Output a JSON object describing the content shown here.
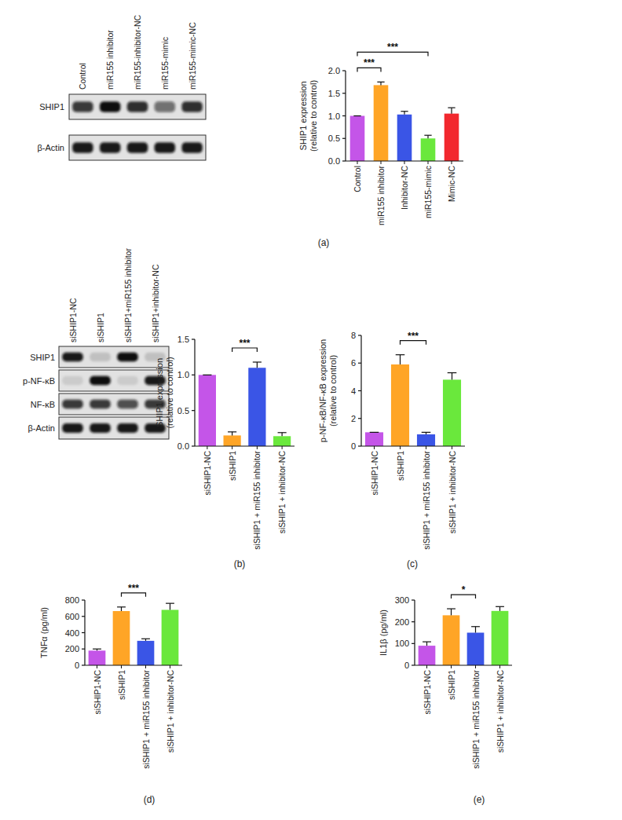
{
  "blots": [
    {
      "lanes": [
        "Control",
        "miR155 inhibitor",
        "miR155-inhibitor-NC",
        "miR155-mimic",
        "miR155-mimic-NC"
      ],
      "rows": [
        {
          "label": "SHIP1",
          "intensity": [
            0.8,
            1.0,
            0.85,
            0.55,
            0.85
          ]
        },
        {
          "label": "β-Actin",
          "intensity": [
            0.95,
            0.95,
            0.95,
            0.95,
            0.95
          ]
        }
      ]
    },
    {
      "lanes": [
        "siSHIP1-NC",
        "siSHIP1",
        "siSHIP1+miR155 inhibitor",
        "siSHIP1+inhibitor-NC"
      ],
      "rows": [
        {
          "label": "SHIP1",
          "intensity": [
            0.95,
            0.15,
            1.0,
            0.15
          ]
        },
        {
          "label": "p-NF-κB",
          "intensity": [
            0.1,
            1.0,
            0.1,
            0.95
          ]
        },
        {
          "label": "NF-κB",
          "intensity": [
            0.8,
            0.8,
            0.7,
            0.8
          ]
        },
        {
          "label": "β-Actin",
          "intensity": [
            0.95,
            0.95,
            0.95,
            0.95
          ]
        }
      ]
    }
  ],
  "chart_data": [
    {
      "type": "bar",
      "caption": "(a)",
      "y_label": [
        "SHIP1 expression",
        "(relative to control)"
      ],
      "categories": [
        "Control",
        "miR155 inhibitor",
        "Inhibitor-NC",
        "miR155-mimic",
        "Mimic-NC"
      ],
      "values": [
        1.0,
        1.68,
        1.03,
        0.5,
        1.05
      ],
      "errors": [
        0,
        0.07,
        0.07,
        0.07,
        0.13
      ],
      "colors": [
        "#c455e8",
        "#ffa526",
        "#3a55e6",
        "#6ae83c",
        "#f2282e"
      ],
      "ylim": [
        0,
        2
      ],
      "yticks": [
        {
          "value": 0,
          "label": "0.0"
        },
        {
          "value": 0.5,
          "label": "0.5"
        },
        {
          "value": 1,
          "label": "1.0"
        },
        {
          "value": 1.5,
          "label": "1.5"
        },
        {
          "value": 2,
          "label": "2.0"
        }
      ],
      "annotations": [
        {
          "text": "***",
          "from": 0,
          "to": 1
        },
        {
          "text": "***",
          "from": 0,
          "to": 3
        }
      ]
    },
    {
      "type": "bar",
      "caption": "(b)",
      "y_label": [
        "SHIP1 expression",
        "(relative to control)"
      ],
      "categories": [
        "siSHIP1-NC",
        "siSHIP1",
        "siSHIP1 + miR155 inhibitor",
        "siSHIP1 + inhibitor-NC"
      ],
      "values": [
        1.0,
        0.15,
        1.1,
        0.14
      ],
      "errors": [
        0,
        0.05,
        0.08,
        0.05
      ],
      "colors": [
        "#c455e8",
        "#ffa526",
        "#3a55e6",
        "#6ae83c"
      ],
      "ylim": [
        0,
        1.5
      ],
      "yticks": [
        {
          "value": 0,
          "label": "0.0"
        },
        {
          "value": 0.5,
          "label": "0.5"
        },
        {
          "value": 1,
          "label": "1.0"
        },
        {
          "value": 1.5,
          "label": "1.5"
        }
      ],
      "annotations": [
        {
          "text": "***",
          "from": 1,
          "to": 2
        }
      ]
    },
    {
      "type": "bar",
      "caption": "(c)",
      "y_label": [
        "p-NF-κB/NF-κB expression",
        "(relative to control)"
      ],
      "categories": [
        "siSHIP1-NC",
        "siSHIP1",
        "siSHIP1 + miR155 inhibitor",
        "siSHIP1 + inhibitor-NC"
      ],
      "values": [
        1.0,
        5.9,
        0.85,
        4.8
      ],
      "errors": [
        0,
        0.7,
        0.15,
        0.5
      ],
      "colors": [
        "#c455e8",
        "#ffa526",
        "#3a55e6",
        "#6ae83c"
      ],
      "ylim": [
        0,
        8
      ],
      "yticks": [
        0,
        2,
        4,
        6,
        8
      ],
      "annotations": [
        {
          "text": "***",
          "from": 1,
          "to": 2
        }
      ]
    },
    {
      "type": "bar",
      "caption": "(d)",
      "y_label": [
        "TNFα (pg/ml)"
      ],
      "categories": [
        "siSHIP1-NC",
        "siSHIP1",
        "siSHIP1 + miR155 inhibitor",
        "siSHIP1 + inhibitor-NC"
      ],
      "values": [
        180,
        665,
        300,
        680
      ],
      "errors": [
        20,
        50,
        25,
        80
      ],
      "colors": [
        "#c455e8",
        "#ffa526",
        "#3a55e6",
        "#6ae83c"
      ],
      "ylim": [
        0,
        800
      ],
      "yticks": [
        0,
        200,
        400,
        600,
        800
      ],
      "annotations": [
        {
          "text": "***",
          "from": 1,
          "to": 2
        }
      ]
    },
    {
      "type": "bar",
      "caption": "(e)",
      "y_label": [
        "IL1β (pg/ml)"
      ],
      "categories": [
        "siSHIP1-NC",
        "siSHIP1",
        "siSHIP1 + miR155 inhibitor",
        "siSHIP1 + inhibitor-NC"
      ],
      "values": [
        90,
        230,
        150,
        250
      ],
      "errors": [
        18,
        30,
        28,
        20
      ],
      "colors": [
        "#c455e8",
        "#ffa526",
        "#3a55e6",
        "#6ae83c"
      ],
      "ylim": [
        0,
        300
      ],
      "yticks": [
        0,
        100,
        200,
        300
      ],
      "annotations": [
        {
          "text": "*",
          "from": 1,
          "to": 2
        }
      ]
    }
  ]
}
